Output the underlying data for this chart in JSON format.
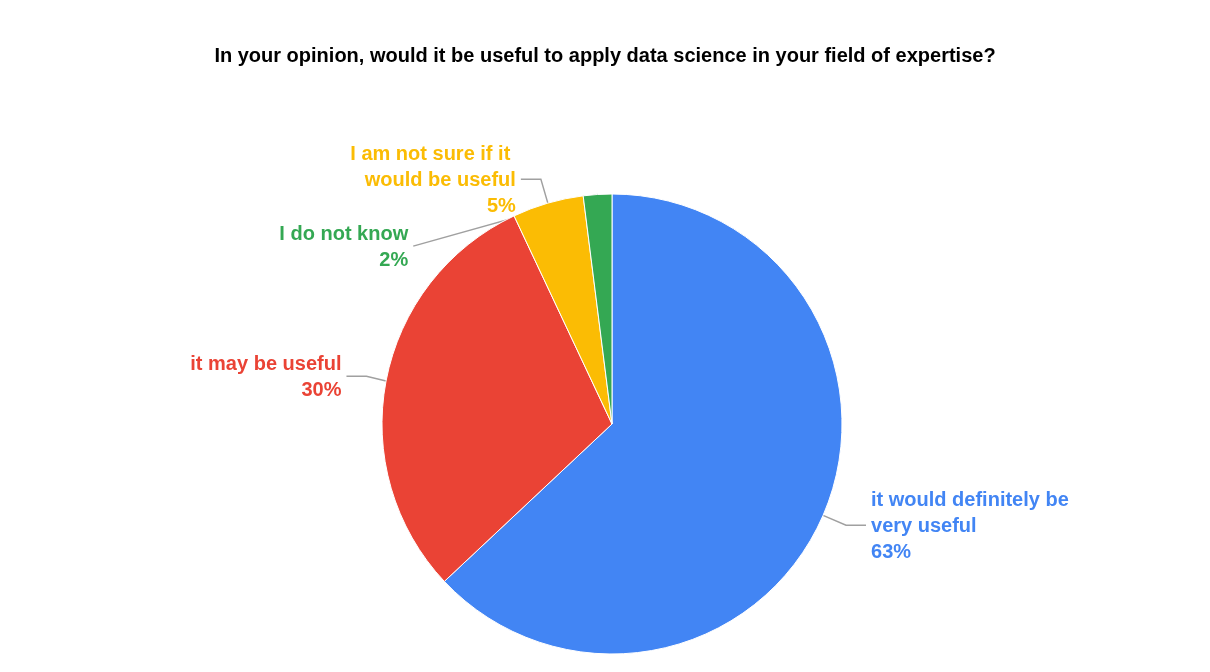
{
  "chart_data": {
    "type": "pie",
    "title": "In your opinion, would it be useful to apply data science in your field of expertise?",
    "categories": [
      "it would definitely be very useful",
      "it may be useful",
      "I am not sure if it would be useful",
      "I do not know"
    ],
    "values": [
      63,
      30,
      5,
      2
    ],
    "value_labels": [
      "63%",
      "30%",
      "5%",
      "2%"
    ],
    "colors": [
      "#4285f4",
      "#ea4335",
      "#fbbc04",
      "#34a853"
    ]
  }
}
